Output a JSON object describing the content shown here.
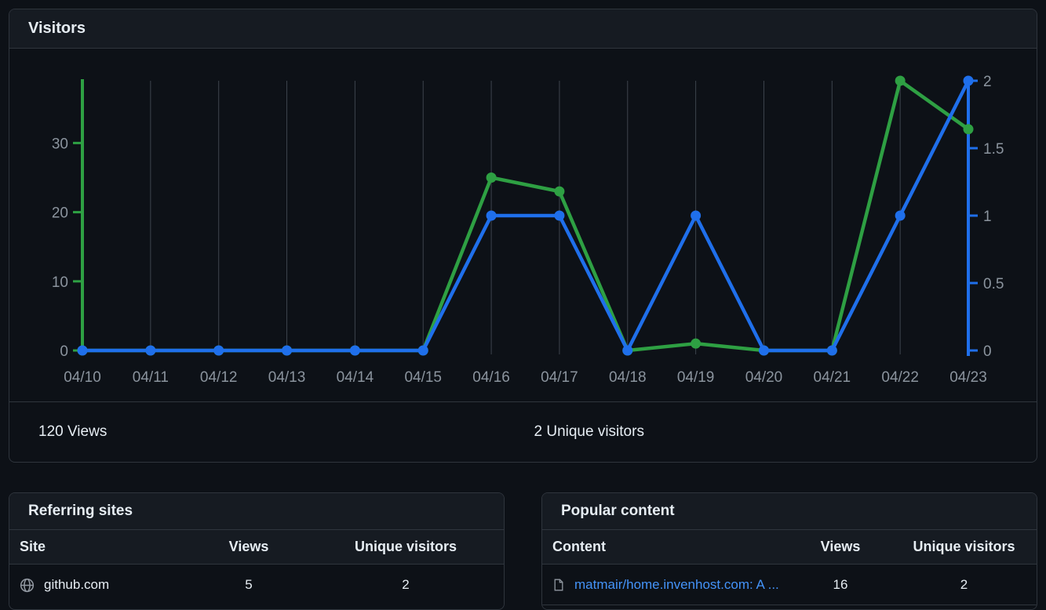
{
  "visitors_card": {
    "title": "Visitors",
    "views_total": "120 Views",
    "unique_total": "2 Unique visitors"
  },
  "chart_data": {
    "type": "line",
    "title": "Visitors",
    "x": [
      "04/10",
      "04/11",
      "04/12",
      "04/13",
      "04/14",
      "04/15",
      "04/16",
      "04/17",
      "04/18",
      "04/19",
      "04/20",
      "04/21",
      "04/22",
      "04/23"
    ],
    "series": [
      {
        "name": "Views",
        "axis": "left",
        "color": "#2ea043",
        "values": [
          0,
          0,
          0,
          0,
          0,
          0,
          25,
          23,
          0,
          1,
          0,
          0,
          39,
          32
        ]
      },
      {
        "name": "Unique visitors",
        "axis": "right",
        "color": "#1f6feb",
        "values": [
          0,
          0,
          0,
          0,
          0,
          0,
          1,
          1,
          0,
          1,
          0,
          0,
          1,
          2
        ]
      }
    ],
    "left_axis": {
      "ticks": [
        0,
        10,
        20,
        30
      ],
      "max": 39,
      "color": "#2ea043"
    },
    "right_axis": {
      "ticks": [
        0,
        0.5,
        1,
        1.5,
        2
      ],
      "max": 2,
      "color": "#1f6feb"
    },
    "grid": "vertical",
    "grid_color": "#3d444d",
    "tick_label_color": "#8b949e",
    "legend": "none"
  },
  "referring_sites": {
    "title": "Referring sites",
    "columns": [
      "Site",
      "Views",
      "Unique visitors"
    ],
    "rows": [
      {
        "icon": "globe-icon",
        "site": "github.com",
        "views": "5",
        "unique": "2"
      }
    ]
  },
  "popular_content": {
    "title": "Popular content",
    "columns": [
      "Content",
      "Views",
      "Unique visitors"
    ],
    "rows": [
      {
        "icon": "file-icon",
        "content": "matmair/home.invenhost.com: A ...",
        "views": "16",
        "unique": "2"
      }
    ]
  },
  "colors": {
    "background": "#0d1117",
    "card_header_bg": "#161b22",
    "border": "#2f353d",
    "text_primary": "#e6edf3",
    "text_muted": "#8b949e",
    "views_green": "#2ea043",
    "unique_blue": "#1f6feb",
    "link_blue": "#4493f8"
  }
}
